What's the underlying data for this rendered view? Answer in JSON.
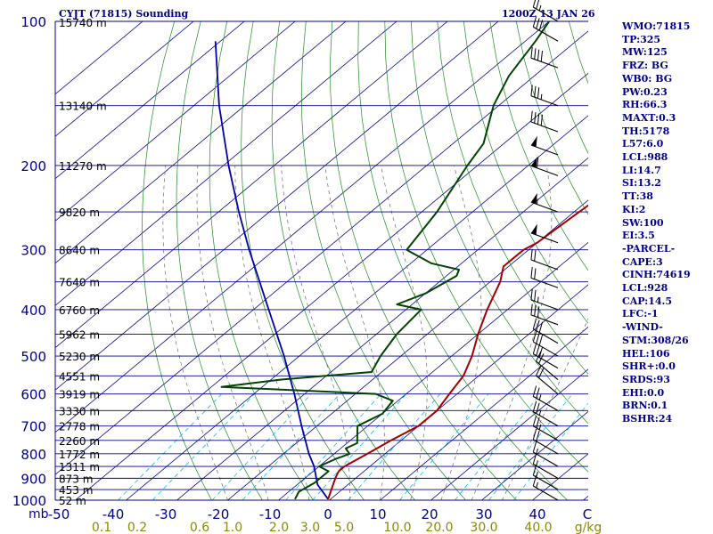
{
  "header": {
    "station": "CYJT (71815) Sounding",
    "time": "1200Z 13 JAN 26"
  },
  "indices": [
    "WMO:71815",
    "TP:325",
    "MW:125",
    "FRZ: BG",
    "WB0: BG",
    "PW:0.23",
    "RH:66.3",
    "MAXT:0.3",
    "TH:5178",
    "L57:6.0",
    "LCL:988",
    "LI:14.7",
    "SI:13.2",
    "TT:38",
    "KI:2",
    "SW:100",
    "EI:3.5",
    "-PARCEL-",
    "CAPE:3",
    "CINH:74619",
    "LCL:928",
    "CAP:14.5",
    "LFC:-1",
    "-WIND-",
    "STM:308/26",
    "HEL:106",
    "SHR+:0.0",
    "SRDS:93",
    "EHI:0.0",
    "BRN:0.1",
    "BSHR:24"
  ],
  "colors": {
    "background": "#ffffff",
    "isobar": "#00008b",
    "isotherm": "#00008b",
    "dry_adiabat": "#228b22",
    "moist_adiabat": "#6b6b6b",
    "mixing_ratio": "#00bfff",
    "temperature": "#a40000",
    "dewpoint": "#004400",
    "parcel": "#0000aa",
    "wind_barb": "#000000",
    "text": "#00008b",
    "mr_label": "#8b8b00"
  },
  "chart_data": {
    "type": "skew-t",
    "title": "CYJT (71815) Sounding",
    "time": "1200Z 13 JAN 26",
    "pressure_ticks": [
      "100",
      "200",
      "300",
      "400",
      "500",
      "600",
      "700",
      "800",
      "900",
      "1000"
    ],
    "pressure_levels": [
      100,
      200,
      300,
      400,
      500,
      600,
      700,
      800,
      900,
      1000
    ],
    "xlabel_prefix": "mb",
    "temperature_ticks": [
      -50,
      -40,
      -30,
      -20,
      -10,
      0,
      10,
      20,
      30,
      40
    ],
    "temperature_tick_labels": [
      "-50",
      "-40",
      "-30",
      "-20",
      "-10",
      "0",
      "10",
      "20",
      "30",
      "40"
    ],
    "corner_label": "C",
    "mixing_ratio_labels": [
      "0.1",
      "0.2",
      "0.6",
      "1.0",
      "2.0",
      "3.0",
      "5.0",
      "10.0",
      "20.0",
      "30.0",
      "40.0"
    ],
    "mixing_ratio_unit": "g/kg",
    "height_labels": [
      {
        "p": 100,
        "label": "15740 m"
      },
      {
        "p": 150,
        "label": "13140 m"
      },
      {
        "p": 200,
        "label": "11270 m"
      },
      {
        "p": 250,
        "label": "9820 m"
      },
      {
        "p": 300,
        "label": "8640 m"
      },
      {
        "p": 350,
        "label": "7640 m"
      },
      {
        "p": 400,
        "label": "6760 m"
      },
      {
        "p": 450,
        "label": "5962 m"
      },
      {
        "p": 500,
        "label": "5230 m"
      },
      {
        "p": 550,
        "label": "4551 m"
      },
      {
        "p": 600,
        "label": "3919 m"
      },
      {
        "p": 650,
        "label": "3330 m"
      },
      {
        "p": 700,
        "label": "2778 m"
      },
      {
        "p": 750,
        "label": "2260 m"
      },
      {
        "p": 800,
        "label": "1772 m"
      },
      {
        "p": 850,
        "label": "1311 m"
      },
      {
        "p": 900,
        "label": "873 m"
      },
      {
        "p": 950,
        "label": "453 m"
      },
      {
        "p": 1000,
        "label": "52 m"
      }
    ],
    "temperature_profile": [
      {
        "p": 995,
        "t": -0.5
      },
      {
        "p": 900,
        "t": -4
      },
      {
        "p": 870,
        "t": -5
      },
      {
        "p": 850,
        "t": -5
      },
      {
        "p": 800,
        "t": -3.5
      },
      {
        "p": 750,
        "t": -2
      },
      {
        "p": 700,
        "t": 0
      },
      {
        "p": 650,
        "t": 0
      },
      {
        "p": 600,
        "t": -1.5
      },
      {
        "p": 550,
        "t": -3
      },
      {
        "p": 500,
        "t": -6
      },
      {
        "p": 450,
        "t": -10
      },
      {
        "p": 400,
        "t": -14
      },
      {
        "p": 350,
        "t": -18
      },
      {
        "p": 325,
        "t": -21
      },
      {
        "p": 300,
        "t": -21
      },
      {
        "p": 290,
        "t": -20
      },
      {
        "p": 250,
        "t": -19
      },
      {
        "p": 220,
        "t": -18
      },
      {
        "p": 210,
        "t": -17
      },
      {
        "p": 200,
        "t": -17
      },
      {
        "p": 180,
        "t": -18
      },
      {
        "p": 160,
        "t": -20
      },
      {
        "p": 150,
        "t": -22
      },
      {
        "p": 140,
        "t": -22
      },
      {
        "p": 120,
        "t": -20
      },
      {
        "p": 110,
        "t": -16
      },
      {
        "p": 100,
        "t": -16
      }
    ],
    "dewpoint_profile": [
      {
        "p": 995,
        "t": -7
      },
      {
        "p": 960,
        "t": -8
      },
      {
        "p": 920,
        "t": -7
      },
      {
        "p": 870,
        "t": -7
      },
      {
        "p": 850,
        "t": -10
      },
      {
        "p": 820,
        "t": -8.5
      },
      {
        "p": 800,
        "t": -7
      },
      {
        "p": 780,
        "t": -9
      },
      {
        "p": 760,
        "t": -8
      },
      {
        "p": 700,
        "t": -12
      },
      {
        "p": 660,
        "t": -10
      },
      {
        "p": 620,
        "t": -11
      },
      {
        "p": 600,
        "t": -16
      },
      {
        "p": 580,
        "t": -48
      },
      {
        "p": 560,
        "t": -38
      },
      {
        "p": 540,
        "t": -22
      },
      {
        "p": 500,
        "t": -24
      },
      {
        "p": 450,
        "t": -26
      },
      {
        "p": 400,
        "t": -27
      },
      {
        "p": 390,
        "t": -33
      },
      {
        "p": 370,
        "t": -30
      },
      {
        "p": 340,
        "t": -28
      },
      {
        "p": 330,
        "t": -29
      },
      {
        "p": 320,
        "t": -36
      },
      {
        "p": 300,
        "t": -44
      },
      {
        "p": 250,
        "t": -47
      },
      {
        "p": 200,
        "t": -52
      },
      {
        "p": 180,
        "t": -54
      },
      {
        "p": 150,
        "t": -61
      },
      {
        "p": 130,
        "t": -65
      },
      {
        "p": 110,
        "t": -68
      },
      {
        "p": 100,
        "t": -70
      }
    ],
    "parcel_profile": [
      {
        "p": 995,
        "t": -0.5
      },
      {
        "p": 928,
        "t": -6
      },
      {
        "p": 850,
        "t": -11
      },
      {
        "p": 800,
        "t": -15
      },
      {
        "p": 700,
        "t": -23
      },
      {
        "p": 600,
        "t": -32
      },
      {
        "p": 500,
        "t": -43
      },
      {
        "p": 400,
        "t": -57
      },
      {
        "p": 300,
        "t": -75
      },
      {
        "p": 250,
        "t": -86
      },
      {
        "p": 200,
        "t": -99
      },
      {
        "p": 150,
        "t": -115
      },
      {
        "p": 110,
        "t": -131
      }
    ],
    "wind_barbs": [
      {
        "p": 100,
        "dir": 300,
        "kt": 25
      },
      {
        "p": 110,
        "dir": 300,
        "kt": 30
      },
      {
        "p": 125,
        "dir": 290,
        "kt": 40
      },
      {
        "p": 150,
        "dir": 290,
        "kt": 35
      },
      {
        "p": 170,
        "dir": 290,
        "kt": 40
      },
      {
        "p": 190,
        "dir": 290,
        "kt": 50
      },
      {
        "p": 210,
        "dir": 290,
        "kt": 60
      },
      {
        "p": 250,
        "dir": 290,
        "kt": 55
      },
      {
        "p": 290,
        "dir": 290,
        "kt": 50
      },
      {
        "p": 330,
        "dir": 290,
        "kt": 20
      },
      {
        "p": 360,
        "dir": 290,
        "kt": 20
      },
      {
        "p": 400,
        "dir": 290,
        "kt": 25
      },
      {
        "p": 430,
        "dir": 290,
        "kt": 30
      },
      {
        "p": 470,
        "dir": 300,
        "kt": 30
      },
      {
        "p": 500,
        "dir": 300,
        "kt": 30
      },
      {
        "p": 530,
        "dir": 300,
        "kt": 30
      },
      {
        "p": 560,
        "dir": 310,
        "kt": 20
      },
      {
        "p": 600,
        "dir": 310,
        "kt": 20
      },
      {
        "p": 650,
        "dir": 300,
        "kt": 25
      },
      {
        "p": 700,
        "dir": 300,
        "kt": 25
      },
      {
        "p": 750,
        "dir": 300,
        "kt": 25
      },
      {
        "p": 800,
        "dir": 300,
        "kt": 20
      },
      {
        "p": 850,
        "dir": 300,
        "kt": 15
      },
      {
        "p": 900,
        "dir": 300,
        "kt": 15
      },
      {
        "p": 950,
        "dir": 300,
        "kt": 15
      },
      {
        "p": 1000,
        "dir": 300,
        "kt": 15
      }
    ],
    "ylim": [
      100,
      1000
    ],
    "xlim": [
      -50,
      50
    ],
    "grid": true,
    "legend": "none"
  }
}
